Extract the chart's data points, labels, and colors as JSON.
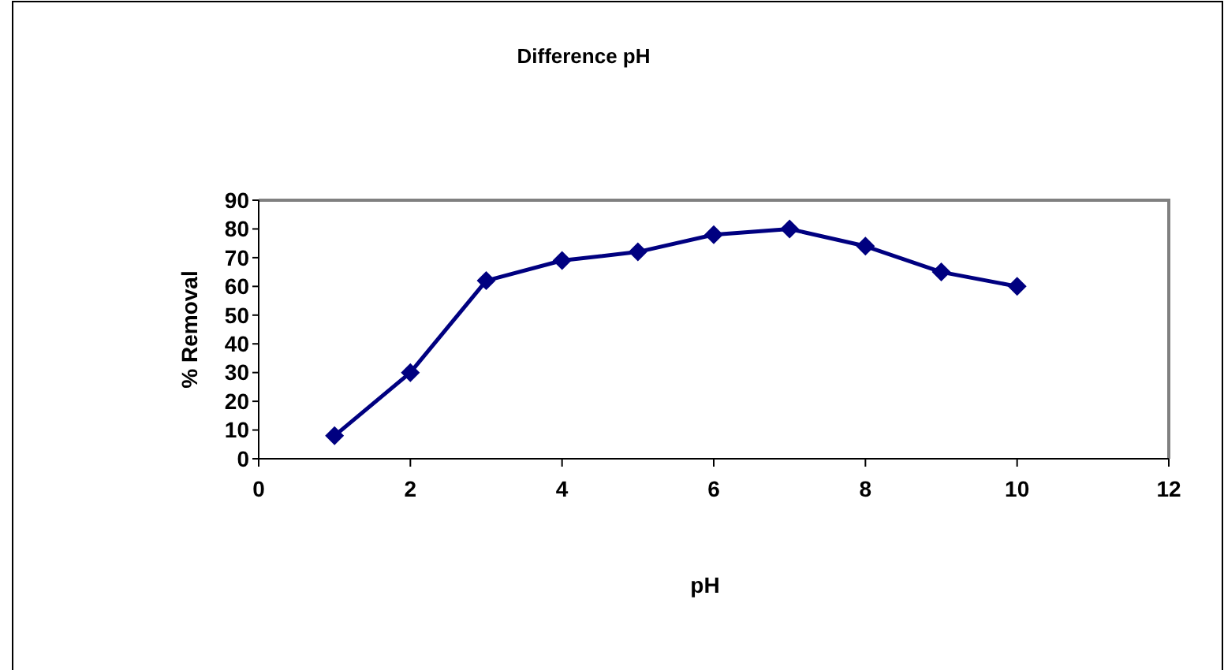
{
  "chart_data": {
    "type": "line",
    "title": "Difference pH",
    "xlabel": "pH",
    "ylabel": "% Removal",
    "x": [
      1,
      2,
      3,
      4,
      5,
      6,
      7,
      8,
      9,
      10
    ],
    "series": [
      {
        "color": "#000080",
        "values": [
          8,
          30,
          62,
          69,
          72,
          78,
          80,
          74,
          65,
          60
        ]
      }
    ],
    "xlim": [
      0,
      12
    ],
    "xticks": [
      0,
      2,
      4,
      6,
      8,
      10,
      12
    ],
    "ylim": [
      0,
      90
    ],
    "yticks": [
      0,
      10,
      20,
      30,
      40,
      50,
      60,
      70,
      80,
      90
    ],
    "grid": false,
    "marker": "diamond",
    "line_style": "solid"
  }
}
